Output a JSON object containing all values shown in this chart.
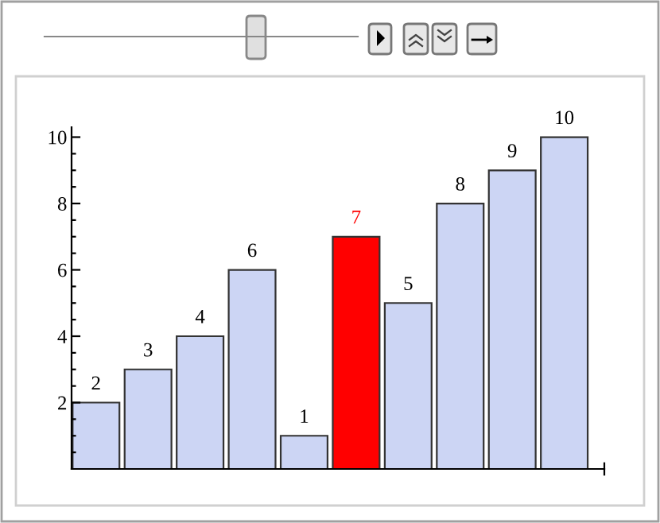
{
  "chart_data": {
    "type": "bar",
    "categories": [
      null,
      null,
      null,
      null,
      null,
      null,
      null,
      null,
      null,
      null
    ],
    "values": [
      2,
      3,
      4,
      6,
      1,
      7,
      5,
      8,
      9,
      10
    ],
    "colors": [
      "#ccd5f4",
      "#ccd5f4",
      "#ccd5f4",
      "#ccd5f4",
      "#ccd5f4",
      "#ff0000",
      "#ccd5f4",
      "#ccd5f4",
      "#ccd5f4",
      "#ccd5f4"
    ],
    "data_labels": true,
    "ylim": [
      0,
      10.3
    ],
    "yticks": [
      {
        "value": 0.5,
        "label": null
      },
      {
        "value": 1,
        "label": null
      },
      {
        "value": 1.5,
        "label": null
      },
      2,
      {
        "value": 2.5,
        "label": null
      },
      {
        "value": 3,
        "label": null
      },
      {
        "value": 3.5,
        "label": null
      },
      4,
      {
        "value": 4.5,
        "label": null
      },
      {
        "value": 5,
        "label": null
      },
      {
        "value": 5.5,
        "label": null
      },
      6,
      {
        "value": 6.5,
        "label": null
      },
      {
        "value": 7,
        "label": null
      },
      {
        "value": 7.5,
        "label": null
      },
      8,
      {
        "value": 8.5,
        "label": null
      },
      {
        "value": 9,
        "label": null
      },
      {
        "value": 9.5,
        "label": null
      },
      10
    ],
    "grid": false
  }
}
